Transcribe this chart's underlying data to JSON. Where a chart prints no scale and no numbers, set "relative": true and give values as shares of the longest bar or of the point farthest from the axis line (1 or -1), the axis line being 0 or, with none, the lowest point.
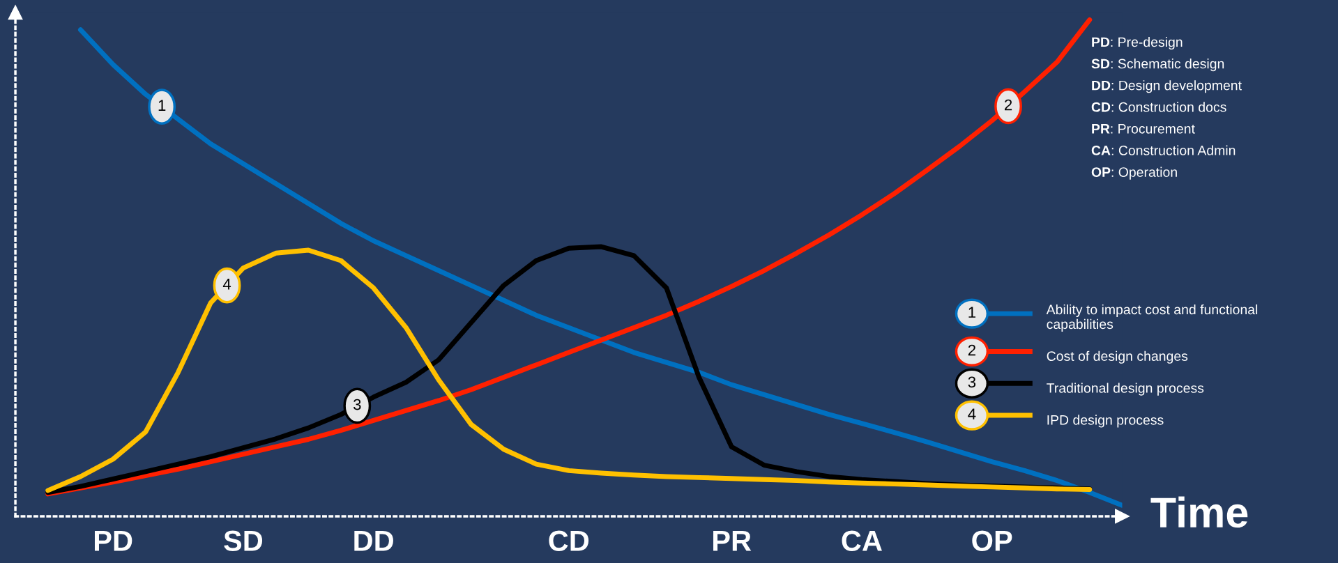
{
  "chart_data": {
    "type": "line",
    "relative": true,
    "xlabel": "Time",
    "categories": [
      null,
      null,
      null,
      "PD",
      null,
      null,
      null,
      "SD",
      null,
      null,
      null,
      "DD",
      null,
      null,
      null,
      null,
      null,
      "CD",
      null,
      null,
      null,
      null,
      "PR",
      null,
      null,
      null,
      "CA",
      null,
      null,
      null,
      "OP",
      null,
      null,
      null,
      null
    ],
    "tick_labels": "x",
    "legend": "right",
    "series": [
      {
        "name": "Ability to impact cost and functional capabilities",
        "color": "#0070c0",
        "values": [
          null,
          null,
          0.98,
          0.91,
          0.85,
          0.8,
          0.75,
          0.71,
          0.67,
          0.63,
          0.59,
          0.555,
          0.525,
          0.495,
          0.465,
          0.435,
          0.405,
          0.38,
          0.355,
          0.33,
          0.31,
          0.29,
          0.265,
          0.245,
          0.225,
          0.205,
          0.187,
          0.169,
          0.15,
          0.13,
          0.11,
          0.092,
          0.072,
          0.048,
          0.022
        ]
      },
      {
        "name": "Cost of design changes",
        "color": "#ff2000",
        "values": [
          null,
          0.045,
          0.057,
          0.069,
          0.082,
          0.095,
          0.11,
          0.125,
          0.14,
          0.155,
          0.173,
          0.193,
          0.213,
          0.233,
          0.255,
          0.28,
          0.305,
          0.33,
          0.355,
          0.38,
          0.405,
          0.433,
          0.463,
          0.495,
          0.53,
          0.567,
          0.607,
          0.65,
          0.697,
          0.745,
          0.797,
          0.855,
          0.915,
          1.0,
          null
        ]
      },
      {
        "name": "Traditional design process",
        "color": "#000000",
        "values": [
          null,
          0.048,
          0.06,
          0.075,
          0.09,
          0.105,
          0.12,
          0.138,
          0.156,
          0.178,
          0.205,
          0.24,
          0.27,
          0.315,
          0.39,
          0.465,
          0.515,
          0.54,
          0.543,
          0.525,
          0.46,
          0.28,
          0.14,
          0.103,
          0.09,
          0.08,
          0.074,
          0.07,
          0.066,
          0.063,
          0.061,
          0.059,
          0.057,
          0.055,
          null
        ]
      },
      {
        "name": "IPD design process",
        "color": "#ffc000",
        "values": [
          null,
          0.052,
          0.08,
          0.115,
          0.17,
          0.29,
          0.43,
          0.5,
          0.53,
          0.536,
          0.515,
          0.46,
          0.38,
          0.275,
          0.185,
          0.135,
          0.105,
          0.092,
          0.087,
          0.083,
          0.08,
          0.078,
          0.076,
          0.074,
          0.072,
          0.069,
          0.067,
          0.065,
          0.063,
          0.061,
          0.059,
          0.057,
          0.055,
          0.054,
          null
        ]
      }
    ],
    "annotations": [
      "1",
      "2",
      "3",
      "4",
      "PD: Pre-design",
      "SD: Schematic design",
      "DD: Design development",
      "CD: Construction docs",
      "PR: Procurement",
      "CA: Construction Admin",
      "OP: Operation"
    ]
  }
}
